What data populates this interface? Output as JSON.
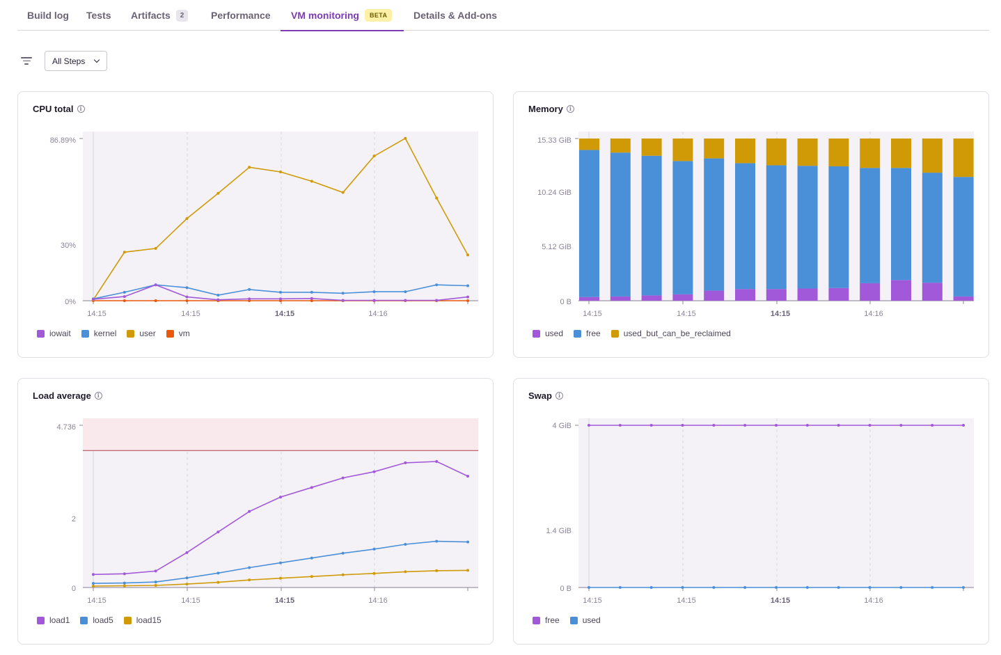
{
  "tabs": [
    {
      "label": "Build log"
    },
    {
      "label": "Tests"
    },
    {
      "label": "Artifacts",
      "badge": "2"
    },
    {
      "label": "Performance"
    },
    {
      "label": "VM monitoring",
      "beta": "BETA",
      "active": true
    },
    {
      "label": "Details & Add-ons"
    }
  ],
  "filter": {
    "steps_value": "All Steps"
  },
  "colors": {
    "accent": "#7c3bb5",
    "purple": "#a259d9",
    "blue": "#4a90d9",
    "gold": "#cf9a06",
    "orange": "#e8590c",
    "red_line": "#b23c44"
  },
  "charts": {
    "cpu": {
      "title": "CPU total",
      "y_ticks": [
        "86.89%",
        "30%",
        "0%"
      ],
      "x_ticks": [
        "14:15",
        "14:15",
        "14:15",
        "14:16"
      ],
      "legend": [
        {
          "label": "iowait",
          "color": "#a259d9"
        },
        {
          "label": "kernel",
          "color": "#4a90d9"
        },
        {
          "label": "user",
          "color": "#cf9a06"
        },
        {
          "label": "vm",
          "color": "#e8590c"
        }
      ]
    },
    "memory": {
      "title": "Memory",
      "y_ticks": [
        "15.33 GiB",
        "10.24 GiB",
        "5.12 GiB",
        "0 B"
      ],
      "x_ticks": [
        "14:15",
        "14:15",
        "14:15",
        "14:16"
      ],
      "legend": [
        {
          "label": "used",
          "color": "#a259d9"
        },
        {
          "label": "free",
          "color": "#4a90d9"
        },
        {
          "label": "used_but_can_be_reclaimed",
          "color": "#cf9a06"
        }
      ]
    },
    "load": {
      "title": "Load average",
      "y_ticks": [
        "4.736",
        "2",
        "0"
      ],
      "x_ticks": [
        "14:15",
        "14:15",
        "14:15",
        "14:16"
      ],
      "legend": [
        {
          "label": "load1",
          "color": "#a259d9"
        },
        {
          "label": "load5",
          "color": "#4a90d9"
        },
        {
          "label": "load15",
          "color": "#cf9a06"
        }
      ]
    },
    "swap": {
      "title": "Swap",
      "y_ticks": [
        "4 GiB",
        "1.4 GiB",
        "0 B"
      ],
      "x_ticks": [
        "14:15",
        "14:15",
        "14:15",
        "14:16"
      ],
      "legend": [
        {
          "label": "free",
          "color": "#a259d9"
        },
        {
          "label": "used",
          "color": "#4a90d9"
        }
      ]
    }
  },
  "chart_data": [
    {
      "type": "line",
      "title": "CPU total",
      "ylim": [
        0,
        86.89
      ],
      "x": [
        0,
        1,
        2,
        3,
        4,
        5,
        6,
        7,
        8,
        9,
        10,
        11,
        12
      ],
      "series": [
        {
          "name": "iowait",
          "values": [
            0.8,
            2.2,
            8.5,
            2,
            0.5,
            1,
            1,
            1.2,
            0.2,
            0.2,
            0.2,
            0.2,
            2
          ]
        },
        {
          "name": "kernel",
          "values": [
            1,
            4.5,
            8.5,
            7,
            3,
            6,
            4.5,
            4.5,
            4,
            4.8,
            4.8,
            8.5,
            8
          ]
        },
        {
          "name": "user",
          "values": [
            0.5,
            26,
            28,
            44,
            57.5,
            71.5,
            69,
            64,
            58,
            77.5,
            87,
            55,
            24.5
          ]
        },
        {
          "name": "vm",
          "values": [
            0,
            0,
            0,
            0,
            0,
            0,
            0,
            0,
            0,
            0,
            0,
            0,
            0
          ]
        }
      ]
    },
    {
      "type": "bar",
      "title": "Memory",
      "ylim": [
        0,
        15.33
      ],
      "categories": [
        "1",
        "2",
        "3",
        "4",
        "5",
        "6",
        "7",
        "8",
        "9",
        "10",
        "11",
        "12",
        "13"
      ],
      "series": [
        {
          "name": "used",
          "values": [
            0.35,
            0.4,
            0.5,
            0.6,
            0.95,
            1.1,
            1.1,
            1.15,
            1.2,
            1.65,
            1.95,
            1.7,
            0.4
          ]
        },
        {
          "name": "free",
          "values": [
            13.9,
            13.6,
            13.2,
            12.6,
            12.5,
            11.9,
            11.7,
            11.6,
            11.5,
            10.9,
            10.6,
            10.4,
            11.3
          ]
        },
        {
          "name": "used_but_can_be_reclaimed",
          "values": [
            1.08,
            1.33,
            1.63,
            2.13,
            1.88,
            2.33,
            2.53,
            2.58,
            2.63,
            2.78,
            2.78,
            3.23,
            3.63
          ]
        }
      ]
    },
    {
      "type": "line",
      "title": "Load average",
      "ylim": [
        0,
        4.736
      ],
      "threshold": 4,
      "x": [
        0,
        1,
        2,
        3,
        4,
        5,
        6,
        7,
        8,
        9,
        10,
        11,
        12
      ],
      "series": [
        {
          "name": "load1",
          "values": [
            0.38,
            0.4,
            0.48,
            1.02,
            1.62,
            2.22,
            2.64,
            2.92,
            3.2,
            3.38,
            3.64,
            3.68,
            3.25
          ]
        },
        {
          "name": "load5",
          "values": [
            0.12,
            0.13,
            0.16,
            0.28,
            0.42,
            0.58,
            0.72,
            0.86,
            1,
            1.12,
            1.26,
            1.35,
            1.33
          ]
        },
        {
          "name": "load15",
          "values": [
            0.04,
            0.05,
            0.06,
            0.1,
            0.15,
            0.22,
            0.27,
            0.32,
            0.37,
            0.41,
            0.46,
            0.49,
            0.5
          ]
        }
      ]
    },
    {
      "type": "line",
      "title": "Swap",
      "ylim": [
        0,
        4
      ],
      "x": [
        0,
        1,
        2,
        3,
        4,
        5,
        6,
        7,
        8,
        9,
        10,
        11,
        12
      ],
      "series": [
        {
          "name": "free",
          "values": [
            4,
            4,
            4,
            4,
            4,
            4,
            4,
            4,
            4,
            4,
            4,
            4,
            4
          ]
        },
        {
          "name": "used",
          "values": [
            0,
            0,
            0,
            0,
            0,
            0,
            0,
            0,
            0,
            0,
            0,
            0,
            0
          ]
        }
      ]
    }
  ]
}
